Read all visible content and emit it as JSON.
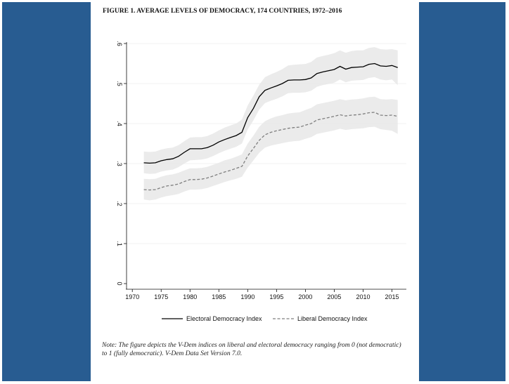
{
  "figure": {
    "title": "FIGURE 1. AVERAGE LEVELS OF DEMOCRACY, 174 COUNTRIES, 1972–2016",
    "note": "Note: The figure depicts the V-Dem indices on liberal and electoral democracy ranging from 0 (not democratic) to 1 (fully democratic). V-Dem Data Set Version 7.0."
  },
  "colors": {
    "background": "#285c91",
    "panel": "#ffffff",
    "band": "#e8e8e8",
    "electoral_line": "#000000",
    "liberal_line": "#7f7f7f"
  },
  "chart_data": {
    "type": "line",
    "title": "",
    "xlabel": "",
    "ylabel": "",
    "xlim": [
      1969,
      2017.5
    ],
    "ylim": [
      0,
      0.6
    ],
    "xticks": [
      1970,
      1975,
      1980,
      1985,
      1990,
      1995,
      2000,
      2005,
      2010,
      2015
    ],
    "xtick_labels": [
      "1970",
      "1975",
      "1980",
      "1985",
      "1990",
      "1995",
      "2000",
      "2005",
      "2010",
      "2015"
    ],
    "yticks": [
      0,
      0.1,
      0.2,
      0.3,
      0.4,
      0.5,
      0.6
    ],
    "ytick_labels": [
      "0",
      ".1",
      ".2",
      ".3",
      ".4",
      ".5",
      ".6"
    ],
    "grid": "horizontal",
    "legend_position": "bottom",
    "x": [
      1972,
      1973,
      1974,
      1975,
      1976,
      1977,
      1978,
      1979,
      1980,
      1981,
      1982,
      1983,
      1984,
      1985,
      1986,
      1987,
      1988,
      1989,
      1990,
      1991,
      1992,
      1993,
      1994,
      1995,
      1996,
      1997,
      1998,
      1999,
      2000,
      2001,
      2002,
      2003,
      2004,
      2005,
      2006,
      2007,
      2008,
      2009,
      2010,
      2011,
      2012,
      2013,
      2014,
      2015,
      2016
    ],
    "series": [
      {
        "name": "Electoral Democracy Index",
        "style": "solid",
        "values": [
          0.302,
          0.301,
          0.302,
          0.307,
          0.31,
          0.312,
          0.318,
          0.328,
          0.337,
          0.337,
          0.337,
          0.34,
          0.346,
          0.354,
          0.36,
          0.365,
          0.37,
          0.378,
          0.415,
          0.438,
          0.467,
          0.483,
          0.489,
          0.494,
          0.5,
          0.508,
          0.509,
          0.509,
          0.51,
          0.514,
          0.525,
          0.529,
          0.532,
          0.535,
          0.543,
          0.536,
          0.54,
          0.541,
          0.542,
          0.548,
          0.55,
          0.544,
          0.543,
          0.545,
          0.54
        ],
        "lower": [
          0.276,
          0.274,
          0.275,
          0.28,
          0.283,
          0.285,
          0.291,
          0.3,
          0.308,
          0.309,
          0.31,
          0.313,
          0.319,
          0.326,
          0.332,
          0.337,
          0.342,
          0.35,
          0.385,
          0.408,
          0.435,
          0.451,
          0.457,
          0.462,
          0.468,
          0.476,
          0.477,
          0.477,
          0.478,
          0.482,
          0.492,
          0.496,
          0.499,
          0.502,
          0.51,
          0.503,
          0.507,
          0.508,
          0.509,
          0.514,
          0.516,
          0.51,
          0.508,
          0.51,
          0.496
        ],
        "upper": [
          0.33,
          0.329,
          0.33,
          0.335,
          0.338,
          0.34,
          0.346,
          0.356,
          0.365,
          0.366,
          0.366,
          0.369,
          0.375,
          0.383,
          0.39,
          0.395,
          0.4,
          0.41,
          0.445,
          0.47,
          0.497,
          0.516,
          0.523,
          0.529,
          0.536,
          0.545,
          0.547,
          0.548,
          0.549,
          0.554,
          0.565,
          0.569,
          0.572,
          0.576,
          0.583,
          0.577,
          0.581,
          0.583,
          0.583,
          0.589,
          0.591,
          0.586,
          0.585,
          0.586,
          0.583
        ]
      },
      {
        "name": "Liberal Democracy Index",
        "style": "dashed",
        "values": [
          0.235,
          0.234,
          0.235,
          0.24,
          0.244,
          0.246,
          0.249,
          0.255,
          0.26,
          0.26,
          0.261,
          0.264,
          0.269,
          0.274,
          0.279,
          0.283,
          0.288,
          0.293,
          0.319,
          0.338,
          0.358,
          0.372,
          0.378,
          0.382,
          0.385,
          0.388,
          0.39,
          0.391,
          0.396,
          0.4,
          0.409,
          0.412,
          0.415,
          0.418,
          0.422,
          0.419,
          0.421,
          0.422,
          0.424,
          0.427,
          0.428,
          0.421,
          0.42,
          0.421,
          0.418
        ],
        "lower": [
          0.21,
          0.208,
          0.21,
          0.215,
          0.219,
          0.221,
          0.224,
          0.23,
          0.235,
          0.235,
          0.236,
          0.239,
          0.244,
          0.249,
          0.254,
          0.258,
          0.262,
          0.267,
          0.29,
          0.308,
          0.327,
          0.34,
          0.345,
          0.348,
          0.351,
          0.354,
          0.356,
          0.357,
          0.362,
          0.366,
          0.374,
          0.377,
          0.38,
          0.383,
          0.387,
          0.384,
          0.386,
          0.387,
          0.388,
          0.391,
          0.392,
          0.386,
          0.384,
          0.382,
          0.374
        ],
        "upper": [
          0.262,
          0.261,
          0.262,
          0.267,
          0.271,
          0.273,
          0.277,
          0.283,
          0.288,
          0.288,
          0.289,
          0.292,
          0.297,
          0.302,
          0.308,
          0.312,
          0.317,
          0.323,
          0.35,
          0.37,
          0.392,
          0.406,
          0.413,
          0.418,
          0.421,
          0.425,
          0.427,
          0.428,
          0.434,
          0.439,
          0.448,
          0.451,
          0.454,
          0.457,
          0.461,
          0.458,
          0.46,
          0.461,
          0.463,
          0.466,
          0.467,
          0.461,
          0.46,
          0.461,
          0.459
        ]
      }
    ]
  }
}
